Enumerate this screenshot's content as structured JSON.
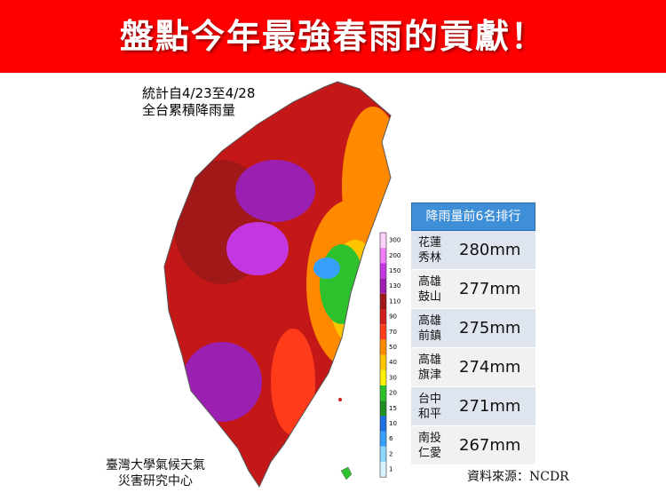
{
  "header": {
    "title": "盤點今年最強春雨的貢獻！"
  },
  "stats": [
    "統計自4/23至4/28",
    "全台累積降雨量"
  ],
  "legend": {
    "ticks": [
      300,
      200,
      150,
      130,
      110,
      90,
      70,
      50,
      40,
      30,
      20,
      15,
      10,
      6,
      2,
      1
    ],
    "colors": [
      "#fdd3fd",
      "#f07cf7",
      "#c336e0",
      "#9b1fb0",
      "#a01818",
      "#d21e1e",
      "#ff3b1a",
      "#ff8a00",
      "#ffc400",
      "#fff000",
      "#2ec12e",
      "#1f8f1f",
      "#1b6fe0",
      "#37a0ff",
      "#8fd7ff",
      "#d6f3ff"
    ]
  },
  "table": {
    "title": "降雨量前6名排行",
    "rows": [
      {
        "place": [
          "花蓮",
          "秀林"
        ],
        "amount": "280mm"
      },
      {
        "place": [
          "高雄",
          "鼓山"
        ],
        "amount": "277mm"
      },
      {
        "place": [
          "高雄",
          "前鎮"
        ],
        "amount": "275mm"
      },
      {
        "place": [
          "高雄",
          "旗津"
        ],
        "amount": "274mm"
      },
      {
        "place": [
          "台中",
          "和平"
        ],
        "amount": "271mm"
      },
      {
        "place": [
          "南投",
          "仁愛"
        ],
        "amount": "267mm"
      }
    ]
  },
  "credit": [
    "臺灣大學氣候天氣",
    "災害研究中心"
  ],
  "source": "資料來源：NCDR"
}
